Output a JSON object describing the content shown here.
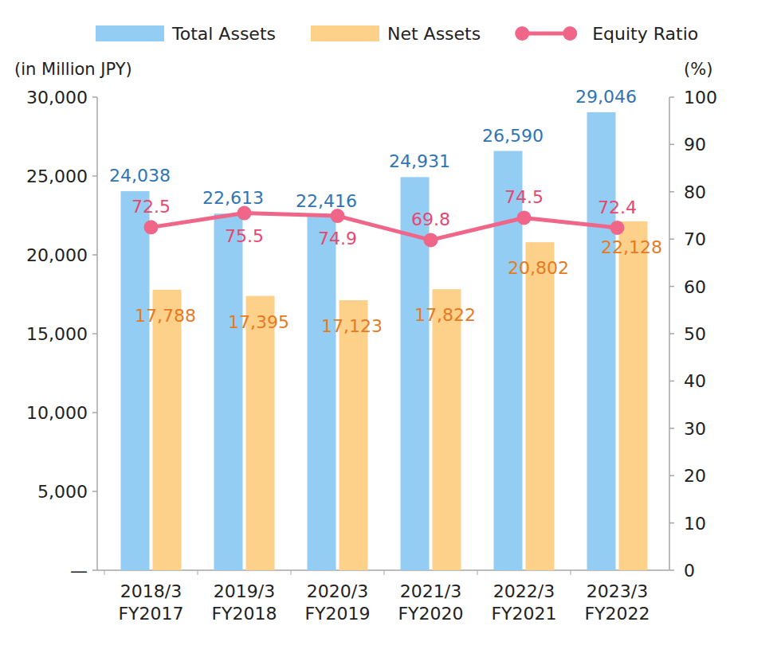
{
  "chart_data": {
    "type": "bar",
    "categories": [
      "2018/3\nFY2017",
      "2019/3\nFY2018",
      "2020/3\nFY2019",
      "2021/3\nFY2020",
      "2022/3\nFY2021",
      "2023/3\nFY2022"
    ],
    "series": [
      {
        "name": "Total Assets",
        "type": "bar",
        "color": "#94cdf3",
        "values": [
          24038,
          22613,
          22416,
          24931,
          26590,
          29046
        ],
        "value_labels": [
          "24,038",
          "22,613",
          "22,416",
          "24,931",
          "26,590",
          "29,046"
        ]
      },
      {
        "name": "Net Assets",
        "type": "bar",
        "color": "#fdd18a",
        "values": [
          17788,
          17395,
          17123,
          17822,
          20802,
          22128
        ],
        "value_labels": [
          "17,788",
          "17,395",
          "17,123",
          "17,822",
          "20,802",
          "22,128"
        ]
      },
      {
        "name": "Equity Ratio",
        "type": "line",
        "axis": "y2",
        "color": "#f06689",
        "marker": "circle",
        "values": [
          72.5,
          75.5,
          74.9,
          69.8,
          74.5,
          72.4
        ]
      }
    ],
    "y_label": "(in Million JPY)",
    "y2_label": "(%)",
    "ylim": [
      0,
      30000
    ],
    "yticks": [
      {
        "value": 0,
        "label": "—"
      },
      {
        "value": 5000,
        "label": "5,000"
      },
      {
        "value": 10000,
        "label": "10,000"
      },
      {
        "value": 15000,
        "label": "15,000"
      },
      {
        "value": 20000,
        "label": "20,000"
      },
      {
        "value": 25000,
        "label": "25,000"
      },
      {
        "value": 30000,
        "label": "30,000"
      }
    ],
    "y2lim": [
      0,
      100
    ],
    "y2ticks": [
      0,
      10,
      20,
      30,
      40,
      50,
      60,
      70,
      80,
      90,
      100
    ],
    "data_labels": true,
    "grid": false,
    "legend": "top"
  }
}
